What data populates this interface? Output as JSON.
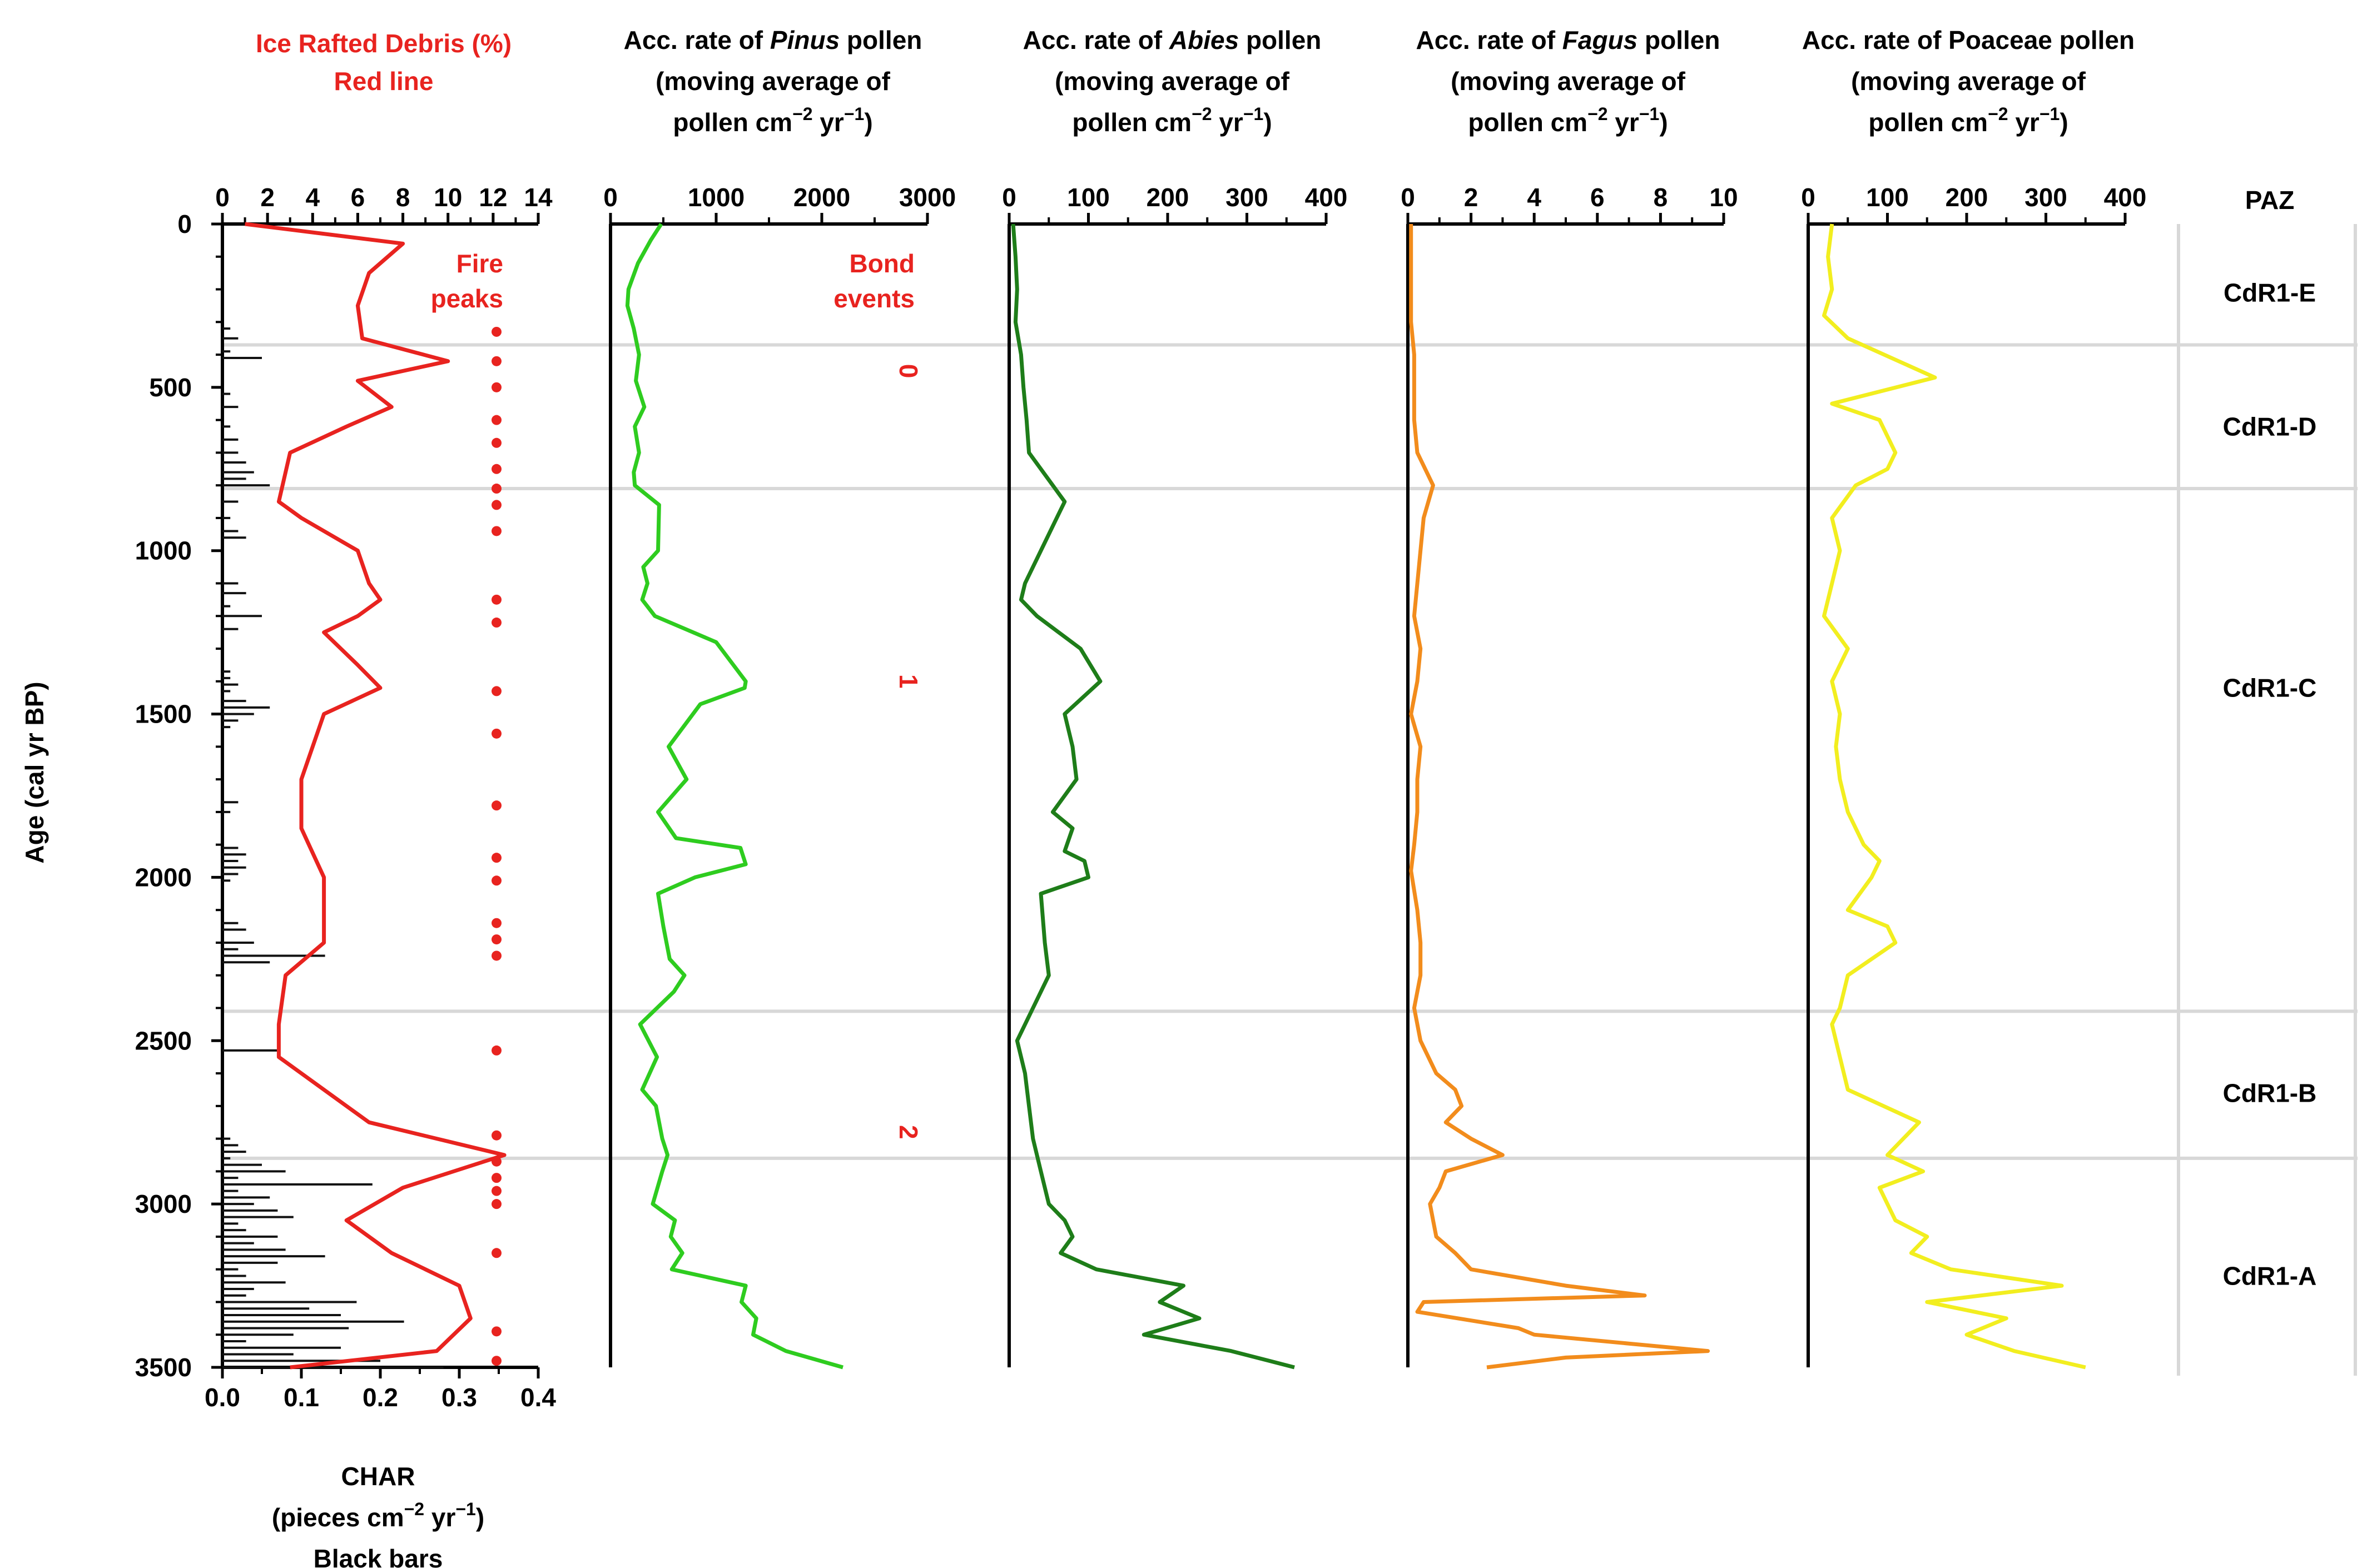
{
  "chart_data": {
    "type": "line",
    "y_axis": {
      "label": "Age  (cal yr BP)",
      "range": [
        0,
        3500
      ],
      "ticks": [
        0,
        500,
        1000,
        1500,
        2000,
        2500,
        3000,
        3500
      ],
      "tick_labels": [
        "0",
        "500",
        "1000",
        "1500",
        "2000",
        "2500",
        "3000",
        "3500"
      ],
      "inverted": true
    },
    "panels": [
      {
        "id": "ird_char",
        "title_lines": [
          "Ice Rafted Debris (%)",
          "Red line"
        ],
        "top_axis": {
          "range": [
            0,
            14
          ],
          "ticks": [
            0,
            2,
            4,
            6,
            8,
            10,
            12,
            14
          ],
          "tick_labels": [
            "0",
            "2",
            "4",
            "6",
            "8",
            "10",
            "12",
            "14"
          ]
        },
        "bottom_axis": {
          "range": [
            0,
            0.4
          ],
          "ticks": [
            0,
            0.1,
            0.2,
            0.3,
            0.4
          ],
          "tick_labels": [
            "0.0",
            "0.1",
            "0.2",
            "0.3",
            "0.4"
          ]
        },
        "bottom_title_lines": [
          "CHAR",
          "(pieces cm",
          "−2",
          " yr",
          "−1",
          ")",
          "Black bars"
        ],
        "ird_series": {
          "name": "Ice Rafted Debris (%)",
          "color": "#e8231f",
          "age": [
            0,
            60,
            150,
            250,
            350,
            420,
            480,
            560,
            620,
            700,
            850,
            900,
            1000,
            1100,
            1150,
            1200,
            1250,
            1350,
            1420,
            1500,
            1700,
            1850,
            2000,
            2150,
            2200,
            2300,
            2450,
            2550,
            2750,
            2850,
            2950,
            3050,
            3150,
            3250,
            3350,
            3450,
            3500
          ],
          "values": [
            1.0,
            8.0,
            6.5,
            6.0,
            6.2,
            10.0,
            6.0,
            7.5,
            5.5,
            3.0,
            2.5,
            3.5,
            6.0,
            6.5,
            7.0,
            6.0,
            4.5,
            6.0,
            7.0,
            4.5,
            3.5,
            3.5,
            4.5,
            4.5,
            4.5,
            2.8,
            2.5,
            2.5,
            6.5,
            12.5,
            8.0,
            5.5,
            7.5,
            10.5,
            11.0,
            9.5,
            3.0
          ]
        },
        "char_bars": {
          "name": "CHAR",
          "color": "#111111",
          "age": [
            320,
            350,
            390,
            410,
            520,
            560,
            620,
            660,
            700,
            730,
            760,
            780,
            800,
            850,
            900,
            940,
            960,
            1100,
            1130,
            1170,
            1200,
            1240,
            1370,
            1390,
            1410,
            1430,
            1460,
            1480,
            1500,
            1520,
            1540,
            1770,
            1800,
            1910,
            1930,
            1950,
            1970,
            1990,
            2010,
            2140,
            2160,
            2200,
            2220,
            2240,
            2260,
            2530,
            2800,
            2820,
            2840,
            2860,
            2880,
            2900,
            2920,
            2940,
            2960,
            2980,
            3000,
            3020,
            3040,
            3060,
            3080,
            3100,
            3120,
            3140,
            3160,
            3180,
            3200,
            3220,
            3240,
            3260,
            3280,
            3300,
            3320,
            3340,
            3360,
            3380,
            3400,
            3420,
            3440,
            3460,
            3480,
            3500
          ],
          "values": [
            0.01,
            0.02,
            0.01,
            0.05,
            0.01,
            0.02,
            0.01,
            0.02,
            0.02,
            0.03,
            0.04,
            0.03,
            0.06,
            0.02,
            0.01,
            0.02,
            0.03,
            0.02,
            0.03,
            0.01,
            0.05,
            0.02,
            0.01,
            0.01,
            0.02,
            0.01,
            0.03,
            0.06,
            0.04,
            0.02,
            0.01,
            0.02,
            0.01,
            0.02,
            0.03,
            0.02,
            0.03,
            0.02,
            0.01,
            0.02,
            0.03,
            0.04,
            0.02,
            0.13,
            0.06,
            0.07,
            0.01,
            0.02,
            0.03,
            0.01,
            0.05,
            0.08,
            0.02,
            0.19,
            0.02,
            0.06,
            0.04,
            0.07,
            0.09,
            0.02,
            0.03,
            0.07,
            0.04,
            0.08,
            0.13,
            0.07,
            0.02,
            0.03,
            0.08,
            0.04,
            0.03,
            0.17,
            0.11,
            0.15,
            0.23,
            0.16,
            0.09,
            0.03,
            0.15,
            0.09,
            0.2,
            0.28
          ]
        },
        "fire_peaks": {
          "label_lines": [
            "Fire",
            "peaks"
          ],
          "color": "#e8231f",
          "ages": [
            330,
            420,
            500,
            600,
            670,
            750,
            810,
            860,
            940,
            1150,
            1220,
            1430,
            1560,
            1780,
            1940,
            2010,
            2140,
            2190,
            2240,
            2530,
            2790,
            2870,
            2920,
            2960,
            3000,
            3150,
            3390,
            3480
          ]
        }
      },
      {
        "id": "pinus",
        "title_lines": [
          "Acc. rate of ",
          "Pinus",
          " pollen",
          "(moving average of",
          "pollen cm",
          "−2",
          " yr",
          "−1",
          ")"
        ],
        "color": "#2ecc1f",
        "axis": {
          "range": [
            0,
            3000
          ],
          "ticks": [
            0,
            1000,
            2000,
            3000
          ],
          "tick_labels": [
            "0",
            "1000",
            "2000",
            "3000"
          ]
        },
        "age": [
          0,
          50,
          120,
          200,
          250,
          320,
          400,
          480,
          560,
          620,
          700,
          760,
          800,
          860,
          1000,
          1050,
          1100,
          1150,
          1200,
          1280,
          1400,
          1420,
          1470,
          1600,
          1700,
          1800,
          1880,
          1910,
          1960,
          2000,
          2050,
          2150,
          2250,
          2300,
          2350,
          2450,
          2550,
          2650,
          2700,
          2800,
          2850,
          2900,
          3000,
          3050,
          3100,
          3150,
          3200,
          3250,
          3300,
          3350,
          3400,
          3450,
          3500
        ],
        "values": [
          480,
          380,
          260,
          170,
          160,
          220,
          270,
          240,
          320,
          230,
          270,
          220,
          230,
          460,
          450,
          310,
          350,
          300,
          420,
          1000,
          1280,
          1270,
          850,
          550,
          720,
          450,
          620,
          1230,
          1280,
          800,
          450,
          500,
          560,
          700,
          600,
          280,
          440,
          300,
          430,
          490,
          540,
          490,
          400,
          610,
          570,
          680,
          580,
          1280,
          1240,
          1380,
          1350,
          1660,
          2200
        ]
      },
      {
        "id": "abies",
        "title_lines": [
          "Acc. rate of ",
          "Abies",
          " pollen",
          "(moving average of",
          "pollen cm",
          "−2",
          " yr",
          "−1",
          ")"
        ],
        "color": "#1e7d19",
        "axis": {
          "range": [
            0,
            400
          ],
          "ticks": [
            0,
            100,
            200,
            300,
            400
          ],
          "tick_labels": [
            "0",
            "100",
            "200",
            "300",
            "400"
          ]
        },
        "age": [
          0,
          100,
          200,
          300,
          400,
          500,
          600,
          700,
          800,
          850,
          900,
          1000,
          1100,
          1150,
          1200,
          1300,
          1400,
          1500,
          1600,
          1700,
          1800,
          1850,
          1920,
          1950,
          2000,
          2050,
          2200,
          2300,
          2400,
          2500,
          2600,
          2700,
          2800,
          2900,
          3000,
          3050,
          3100,
          3150,
          3200,
          3250,
          3300,
          3350,
          3400,
          3450,
          3500
        ],
        "values": [
          5,
          8,
          10,
          8,
          15,
          18,
          22,
          25,
          55,
          70,
          60,
          40,
          20,
          15,
          35,
          90,
          115,
          70,
          80,
          85,
          55,
          80,
          70,
          95,
          100,
          40,
          45,
          50,
          30,
          10,
          20,
          25,
          30,
          40,
          50,
          70,
          80,
          65,
          110,
          220,
          190,
          240,
          170,
          280,
          360
        ]
      },
      {
        "id": "fagus",
        "title_lines": [
          "Acc. rate of ",
          "Fagus",
          " pollen",
          "(moving average of",
          "pollen cm",
          "−2",
          " yr",
          "−1",
          ")"
        ],
        "color": "#f28c1c",
        "axis": {
          "range": [
            0,
            10
          ],
          "ticks": [
            0,
            2,
            4,
            6,
            8,
            10
          ],
          "tick_labels": [
            "0",
            "2",
            "4",
            "6",
            "8",
            "10"
          ]
        },
        "age": [
          0,
          100,
          200,
          300,
          400,
          500,
          600,
          700,
          800,
          900,
          1000,
          1200,
          1300,
          1400,
          1500,
          1600,
          1700,
          1800,
          1900,
          1980,
          2100,
          2200,
          2300,
          2400,
          2500,
          2600,
          2650,
          2700,
          2750,
          2800,
          2850,
          2900,
          2950,
          3000,
          3050,
          3100,
          3150,
          3200,
          3250,
          3280,
          3300,
          3330,
          3380,
          3400,
          3450,
          3470,
          3500
        ],
        "values": [
          0.1,
          0.1,
          0.1,
          0.1,
          0.2,
          0.2,
          0.2,
          0.3,
          0.8,
          0.5,
          0.4,
          0.2,
          0.4,
          0.3,
          0.1,
          0.4,
          0.3,
          0.3,
          0.2,
          0.1,
          0.3,
          0.4,
          0.4,
          0.2,
          0.4,
          0.9,
          1.5,
          1.7,
          1.2,
          2.0,
          3.0,
          1.2,
          1.0,
          0.7,
          0.8,
          0.9,
          1.5,
          2.0,
          5.0,
          7.5,
          0.5,
          0.3,
          3.5,
          4.0,
          9.5,
          5.0,
          2.5
        ]
      },
      {
        "id": "poaceae",
        "title_lines": [
          "Acc. rate of Poaceae pollen",
          "(moving average of",
          "pollen cm",
          "−2",
          " yr",
          "−1",
          ")"
        ],
        "color": "#f2ee1f",
        "axis": {
          "range": [
            0,
            400
          ],
          "ticks": [
            0,
            100,
            200,
            300,
            400
          ],
          "tick_labels": [
            "0",
            "100",
            "200",
            "300",
            "400"
          ]
        },
        "age": [
          0,
          100,
          200,
          280,
          350,
          470,
          550,
          600,
          700,
          750,
          800,
          900,
          1000,
          1100,
          1200,
          1300,
          1400,
          1500,
          1600,
          1700,
          1800,
          1900,
          1950,
          2000,
          2100,
          2150,
          2200,
          2300,
          2400,
          2450,
          2550,
          2650,
          2750,
          2850,
          2900,
          2950,
          3000,
          3050,
          3100,
          3150,
          3200,
          3250,
          3300,
          3350,
          3400,
          3450,
          3500
        ],
        "values": [
          30,
          25,
          30,
          20,
          50,
          160,
          30,
          90,
          110,
          100,
          60,
          30,
          40,
          30,
          20,
          50,
          30,
          40,
          35,
          40,
          50,
          70,
          90,
          80,
          50,
          100,
          110,
          50,
          40,
          30,
          40,
          50,
          140,
          100,
          145,
          90,
          100,
          110,
          150,
          130,
          180,
          320,
          150,
          250,
          200,
          260,
          350
        ]
      }
    ],
    "bond_events": {
      "label_lines": [
        "Bond",
        "events"
      ],
      "color": "#e8231f",
      "events": [
        {
          "label": "0",
          "age": 450
        },
        {
          "label": "1",
          "age": 1400
        },
        {
          "label": "2",
          "age": 2780
        }
      ]
    },
    "paz": {
      "header": "PAZ",
      "boundaries": [
        370,
        810,
        2410,
        2860
      ],
      "zones": [
        {
          "label": "CdR1-E",
          "mid_age": 210
        },
        {
          "label": "CdR1-D",
          "mid_age": 620
        },
        {
          "label": "CdR1-C",
          "mid_age": 1420
        },
        {
          "label": "CdR1-B",
          "mid_age": 2660
        },
        {
          "label": "CdR1-A",
          "mid_age": 3220
        }
      ]
    }
  }
}
